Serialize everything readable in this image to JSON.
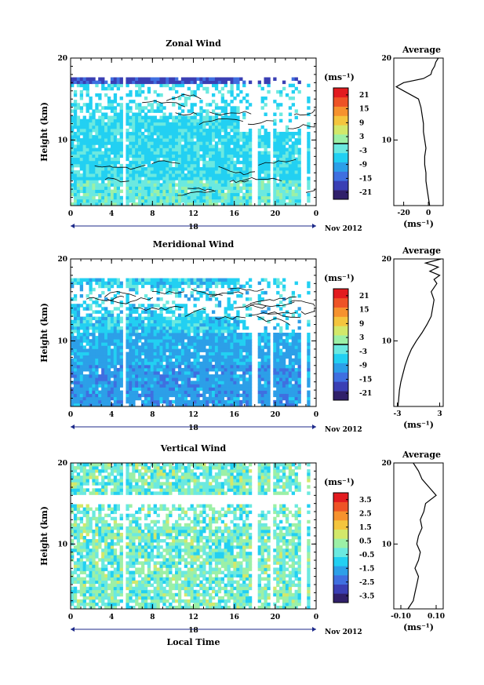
{
  "palette": [
    "#30206a",
    "#3a3fb4",
    "#3f6fe0",
    "#2c9fe8",
    "#22d0f2",
    "#6be9e0",
    "#9cf0a6",
    "#d3e86a",
    "#f4c53e",
    "#f6922e",
    "#ee5326",
    "#e21b1f"
  ],
  "chart_data": [
    {
      "type": "heatmap",
      "title": "Zonal Wind",
      "ylabel": "Height (km)",
      "ylim": [
        2,
        20
      ],
      "yticks": [
        20,
        10
      ],
      "xlim": [
        0,
        24
      ],
      "xticks": [
        "0",
        "4",
        "8",
        "12",
        "16",
        "20",
        "0"
      ],
      "date_label": "18",
      "month_label": "Nov 2012",
      "colorbar": {
        "unit_label": "(ms⁻¹)",
        "ticks": [
          "21",
          "15",
          "9",
          "3",
          "-3",
          "-9",
          "-15",
          "-21"
        ],
        "range": [
          -24,
          24
        ],
        "zero_line": true
      },
      "field": {
        "base": -5,
        "range": [
          -24,
          24
        ],
        "gaps_x": [
          5.3,
          18.0,
          19.6,
          22.8
        ],
        "top_km": 17.5
      },
      "profile": {
        "title": "Average",
        "xlim": [
          -28,
          12
        ],
        "xticks": [
          "-20",
          "0"
        ],
        "xlabel": "(ms⁻¹)",
        "yticks": [
          20,
          10
        ],
        "h": [
          2,
          3,
          4,
          5,
          6,
          7,
          8,
          9,
          10,
          11,
          12,
          13,
          14,
          15,
          16,
          16.5,
          17,
          17.5,
          18,
          18.5,
          19,
          19.5,
          20
        ],
        "v": [
          1,
          0,
          -1,
          -2,
          -2,
          -3,
          -3,
          -2,
          -3,
          -4,
          -4,
          -5,
          -6,
          -8,
          -20,
          -26,
          -20,
          -4,
          2,
          3,
          5,
          6,
          8
        ]
      }
    },
    {
      "type": "heatmap",
      "title": "Meridional Wind",
      "ylabel": "Height (km)",
      "ylim": [
        2,
        20
      ],
      "yticks": [
        20,
        10
      ],
      "xlim": [
        0,
        24
      ],
      "xticks": [
        "0",
        "4",
        "8",
        "12",
        "16",
        "20",
        "0"
      ],
      "date_label": "18",
      "month_label": "Nov 2012",
      "colorbar": {
        "unit_label": "(ms⁻¹)",
        "ticks": [
          "21",
          "15",
          "9",
          "3",
          "-3",
          "-9",
          "-15",
          "-21"
        ],
        "range": [
          -24,
          24
        ],
        "zero_line": true
      },
      "field": {
        "base": -9,
        "range": [
          -24,
          24
        ],
        "gaps_x": [
          5.3,
          18.0,
          19.6,
          22.8
        ],
        "top_km": 17.5
      },
      "profile": {
        "title": "Average",
        "xlim": [
          -3.5,
          3.5
        ],
        "xticks": [
          "-3",
          "3"
        ],
        "xlabel": "(ms⁻¹)",
        "yticks": [
          20,
          10
        ],
        "h": [
          2,
          3,
          4,
          5,
          6,
          7,
          8,
          9,
          10,
          11,
          12,
          13,
          14,
          15,
          16,
          17,
          17.5,
          18,
          18.5,
          19,
          19.5,
          20
        ],
        "v": [
          -2.9,
          -2.8,
          -2.7,
          -2.5,
          -2.2,
          -1.9,
          -1.5,
          -1.0,
          -0.3,
          0.5,
          1.2,
          1.8,
          2.0,
          2.2,
          1.8,
          2.6,
          2.2,
          3.0,
          1.6,
          2.8,
          1.0,
          3.2
        ]
      }
    },
    {
      "type": "heatmap",
      "title": "Vertical Wind",
      "ylabel": "Height (km)",
      "xlabel": "Local Time",
      "ylim": [
        2,
        20
      ],
      "yticks": [
        20,
        10
      ],
      "xlim": [
        0,
        24
      ],
      "xticks": [
        "0",
        "4",
        "8",
        "12",
        "16",
        "20",
        "0"
      ],
      "date_label": "18",
      "month_label": "Nov 2012",
      "colorbar": {
        "unit_label": "(ms⁻¹)",
        "ticks": [
          "3.5",
          "2.5",
          "1.5",
          "0.5",
          "-0.5",
          "-1.5",
          "-2.5",
          "-3.5"
        ],
        "range": [
          -4,
          4
        ],
        "zero_line": false
      },
      "field": {
        "base": -0.3,
        "range": [
          -4,
          4
        ],
        "gaps_x": [
          5.3,
          18.0,
          19.6,
          22.8
        ],
        "top_km": 20
      },
      "profile": {
        "title": "Average",
        "xlim": [
          -0.14,
          0.14
        ],
        "xticks": [
          "-0.10",
          "0.10"
        ],
        "xlabel": "(ms⁻¹)",
        "yticks": [
          20,
          10
        ],
        "h": [
          2,
          3,
          4,
          5,
          6,
          7,
          8,
          9,
          10,
          11,
          12,
          13,
          14,
          15,
          16,
          17,
          18,
          19,
          20
        ],
        "v": [
          -0.06,
          -0.03,
          -0.02,
          -0.01,
          0.0,
          -0.02,
          0.0,
          0.01,
          -0.01,
          0.0,
          0.02,
          0.01,
          0.03,
          0.04,
          0.1,
          0.06,
          0.02,
          0.0,
          -0.03
        ]
      }
    }
  ]
}
